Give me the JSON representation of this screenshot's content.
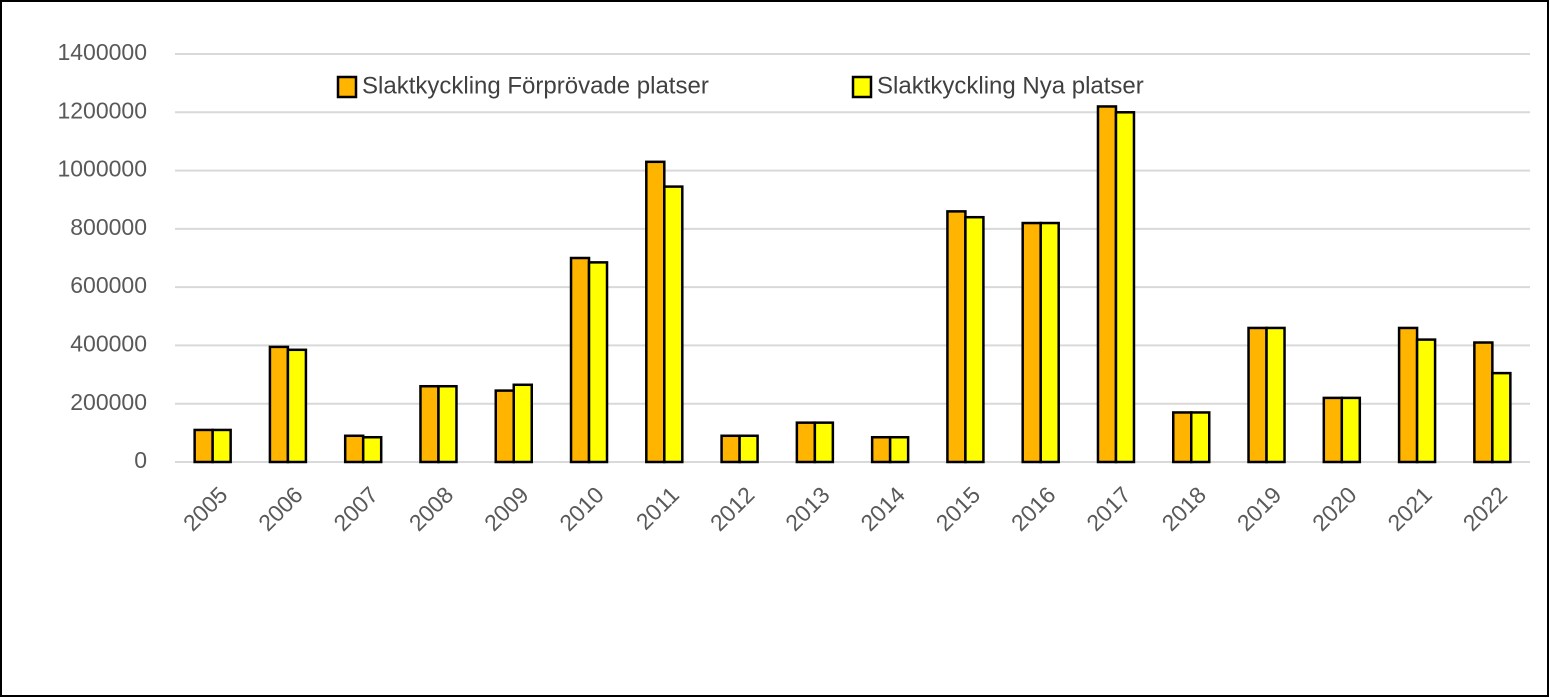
{
  "chart_data": {
    "type": "bar",
    "categories": [
      "2005",
      "2006",
      "2007",
      "2008",
      "2009",
      "2010",
      "2011",
      "2012",
      "2013",
      "2014",
      "2015",
      "2016",
      "2017",
      "2018",
      "2019",
      "2020",
      "2021",
      "2022"
    ],
    "series": [
      {
        "name": "Slaktkyckling Förprövade platser",
        "color": "#ffb400",
        "values": [
          110000,
          395000,
          90000,
          260000,
          245000,
          700000,
          1030000,
          90000,
          135000,
          85000,
          860000,
          820000,
          1220000,
          170000,
          460000,
          220000,
          460000,
          410000
        ]
      },
      {
        "name": "Slaktkyckling Nya platser",
        "color": "#ffff00",
        "values": [
          110000,
          385000,
          85000,
          260000,
          265000,
          685000,
          945000,
          90000,
          135000,
          85000,
          840000,
          820000,
          1200000,
          170000,
          460000,
          220000,
          420000,
          305000
        ]
      }
    ],
    "ylim": [
      0,
      1400000
    ],
    "yticks": [
      0,
      200000,
      400000,
      600000,
      800000,
      1000000,
      1200000,
      1400000
    ],
    "grid": true,
    "legend": "top"
  }
}
